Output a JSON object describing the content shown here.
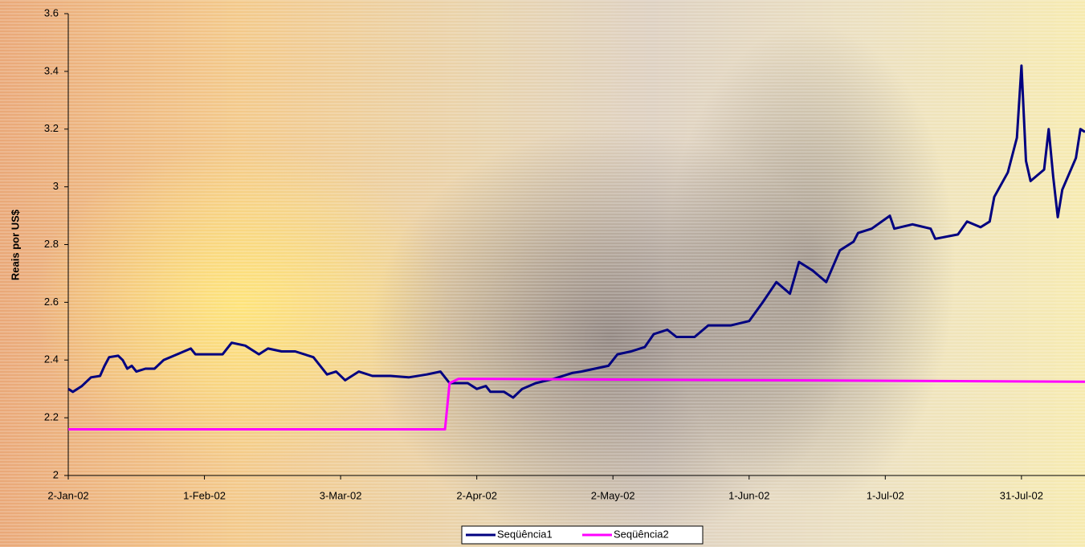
{
  "chart_data": {
    "type": "line",
    "y_label": "Reais por US$",
    "ylim": [
      2,
      3.6
    ],
    "yticks": [
      2,
      2.2,
      2.4,
      2.6,
      2.8,
      3,
      3.2,
      3.4,
      3.6
    ],
    "xlim": [
      "2002-01-02",
      "2002-08-14"
    ],
    "xticks": [
      {
        "value": "2002-01-02",
        "label": "2-Jan-02"
      },
      {
        "value": "2002-02-01",
        "label": "1-Feb-02"
      },
      {
        "value": "2002-03-03",
        "label": "3-Mar-02"
      },
      {
        "value": "2002-04-02",
        "label": "2-Apr-02"
      },
      {
        "value": "2002-05-02",
        "label": "2-May-02"
      },
      {
        "value": "2002-06-01",
        "label": "1-Jun-02"
      },
      {
        "value": "2002-07-01",
        "label": "1-Jul-02"
      },
      {
        "value": "2002-07-31",
        "label": "31-Jul-02"
      }
    ],
    "legend": "bottom",
    "series": [
      {
        "name": "Seqüência1",
        "color": "#000080",
        "x": [
          "2002-01-02",
          "2002-01-03",
          "2002-01-05",
          "2002-01-07",
          "2002-01-09",
          "2002-01-10",
          "2002-01-11",
          "2002-01-13",
          "2002-01-14",
          "2002-01-15",
          "2002-01-16",
          "2002-01-17",
          "2002-01-19",
          "2002-01-21",
          "2002-01-23",
          "2002-01-26",
          "2002-01-29",
          "2002-01-30",
          "2002-02-02",
          "2002-02-05",
          "2002-02-07",
          "2002-02-10",
          "2002-02-13",
          "2002-02-15",
          "2002-02-18",
          "2002-02-21",
          "2002-02-25",
          "2002-02-28",
          "2002-03-02",
          "2002-03-04",
          "2002-03-07",
          "2002-03-10",
          "2002-03-14",
          "2002-03-18",
          "2002-03-22",
          "2002-03-25",
          "2002-03-27",
          "2002-03-31",
          "2002-04-02",
          "2002-04-04",
          "2002-04-05",
          "2002-04-08",
          "2002-04-10",
          "2002-04-12",
          "2002-04-15",
          "2002-04-19",
          "2002-04-23",
          "2002-04-25",
          "2002-04-28",
          "2002-05-01",
          "2002-05-03",
          "2002-05-06",
          "2002-05-09",
          "2002-05-11",
          "2002-05-14",
          "2002-05-16",
          "2002-05-20",
          "2002-05-23",
          "2002-05-28",
          "2002-06-01",
          "2002-06-04",
          "2002-06-07",
          "2002-06-10",
          "2002-06-12",
          "2002-06-15",
          "2002-06-18",
          "2002-06-21",
          "2002-06-24",
          "2002-06-25",
          "2002-06-28",
          "2002-07-02",
          "2002-07-03",
          "2002-07-07",
          "2002-07-11",
          "2002-07-12",
          "2002-07-17",
          "2002-07-19",
          "2002-07-22",
          "2002-07-24",
          "2002-07-25",
          "2002-07-28",
          "2002-07-30",
          "2002-07-31",
          "2002-08-01",
          "2002-08-02",
          "2002-08-05",
          "2002-08-06",
          "2002-08-07",
          "2002-08-08",
          "2002-08-09",
          "2002-08-12",
          "2002-08-13",
          "2002-08-14"
        ],
        "values": [
          2.3,
          2.29,
          2.31,
          2.34,
          2.345,
          2.38,
          2.41,
          2.415,
          2.4,
          2.37,
          2.38,
          2.36,
          2.37,
          2.37,
          2.4,
          2.42,
          2.44,
          2.42,
          2.42,
          2.42,
          2.46,
          2.45,
          2.42,
          2.44,
          2.43,
          2.43,
          2.41,
          2.35,
          2.36,
          2.33,
          2.36,
          2.345,
          2.345,
          2.34,
          2.35,
          2.36,
          2.32,
          2.32,
          2.3,
          2.31,
          2.29,
          2.29,
          2.27,
          2.3,
          2.32,
          2.335,
          2.355,
          2.36,
          2.37,
          2.38,
          2.42,
          2.43,
          2.445,
          2.49,
          2.505,
          2.48,
          2.48,
          2.52,
          2.52,
          2.535,
          2.6,
          2.67,
          2.63,
          2.74,
          2.71,
          2.67,
          2.78,
          2.81,
          2.84,
          2.855,
          2.9,
          2.855,
          2.87,
          2.855,
          2.82,
          2.835,
          2.88,
          2.86,
          2.88,
          2.965,
          3.05,
          3.17,
          3.42,
          3.09,
          3.02,
          3.06,
          3.2,
          3.035,
          2.895,
          2.99,
          3.1,
          3.2,
          3.19
        ]
      },
      {
        "name": "Seqüência2",
        "color": "#ff00ff",
        "x": [
          "2002-01-02",
          "2002-03-26",
          "2002-03-27",
          "2002-03-29",
          "2002-08-14"
        ],
        "values": [
          2.16,
          2.16,
          2.32,
          2.335,
          2.325
        ]
      }
    ]
  }
}
